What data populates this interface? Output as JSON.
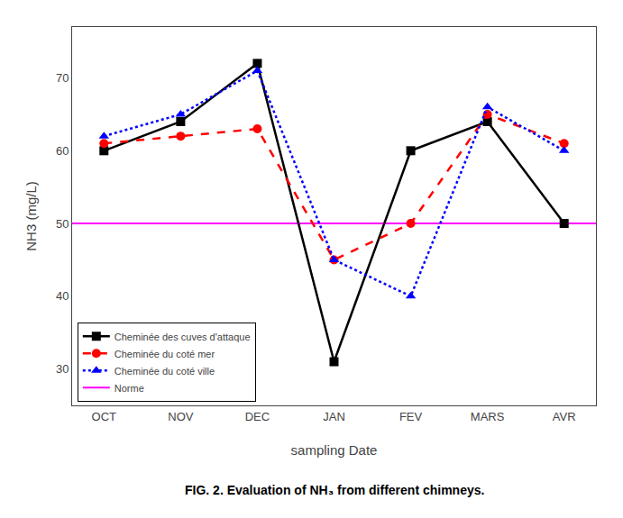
{
  "chart_data": {
    "type": "line",
    "categories": [
      "OCT",
      "NOV",
      "DEC",
      "JAN",
      "FEV",
      "MARS",
      "AVR"
    ],
    "series": [
      {
        "name": "Cheminée des cuves d'attaque",
        "color": "black",
        "marker": "square",
        "line_style": "solid",
        "values": [
          60,
          64,
          72,
          31,
          60,
          64,
          50
        ]
      },
      {
        "name": "Cheminée du coté mer",
        "color": "red",
        "marker": "circle",
        "line_style": "dash",
        "values": [
          61,
          62,
          63,
          45,
          50,
          65,
          61
        ]
      },
      {
        "name": "Cheminée du coté ville",
        "color": "blue",
        "marker": "triangle",
        "line_style": "dot",
        "values": [
          62,
          65,
          71,
          45,
          40,
          66,
          60
        ]
      },
      {
        "name": "Norme",
        "type": "hline",
        "color": "magenta",
        "line_style": "solid",
        "value": 50
      }
    ],
    "xlabel": "sampling Date",
    "ylabel": "NH3 (mg/L)",
    "ylim": [
      25,
      77
    ],
    "yticks": [
      30,
      40,
      50,
      60,
      70
    ],
    "grid": false,
    "legend": "lower left",
    "annotations": [
      "FIG. 2. Evaluation of NH₃ from different chimneys."
    ]
  }
}
